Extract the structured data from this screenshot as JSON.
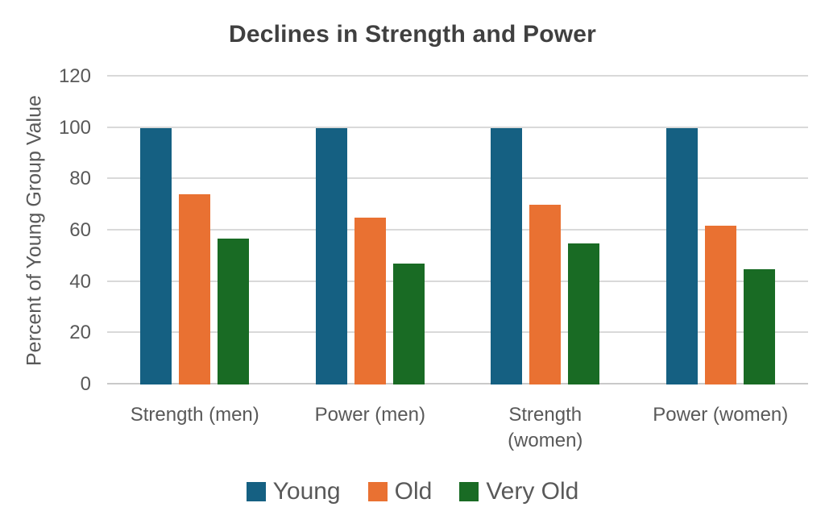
{
  "colors": {
    "background": "#FFFFFF",
    "title_text": "#404040",
    "axis_text": "#595959",
    "gridline": "#D9D9D9",
    "baseline": "#C9C9C9"
  },
  "chart_data": {
    "type": "bar",
    "title": "Declines in Strength and Power",
    "xlabel": "",
    "ylabel": "Percent of Young Group Value",
    "ylim": [
      0,
      120
    ],
    "y_ticks": [
      0,
      20,
      40,
      60,
      80,
      100,
      120
    ],
    "grid": "horizontal",
    "legend_position": "bottom",
    "categories": [
      "Strength (men)",
      "Power (men)",
      "Strength (women)",
      "Power (women)"
    ],
    "series": [
      {
        "name": "Young",
        "color": "#156082",
        "values": [
          100,
          100,
          100,
          100
        ]
      },
      {
        "name": "Old",
        "color": "#E97132",
        "values": [
          74,
          65,
          70,
          62
        ]
      },
      {
        "name": "Very Old",
        "color": "#196B24",
        "values": [
          57,
          47,
          55,
          45
        ]
      }
    ]
  }
}
